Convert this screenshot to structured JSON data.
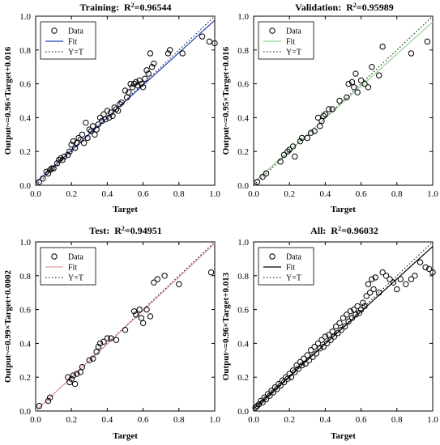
{
  "chart_data": [
    {
      "type": "scatter",
      "title_prefix": "Training:",
      "title_r2": "0.96544",
      "xlabel": "Target",
      "ylabel": "Output~=0.96×Target+0.016",
      "xlim": [
        0,
        1
      ],
      "ylim": [
        0,
        1
      ],
      "xticks": [
        "0.0",
        "0.2",
        "0.4",
        "0.6",
        "0.8",
        "1.0"
      ],
      "yticks": [
        "0.0",
        "0.2",
        "0.4",
        "0.6",
        "0.8",
        "1.0"
      ],
      "legend": [
        "Data",
        "Fit",
        "Y=T"
      ],
      "legend_position": "top-left",
      "fit": {
        "slope": 0.96,
        "intercept": 0.016,
        "color": "#1f3fbf"
      },
      "points": [
        [
          0.02,
          0.02
        ],
        [
          0.04,
          0.04
        ],
        [
          0.06,
          0.08
        ],
        [
          0.07,
          0.07
        ],
        [
          0.08,
          0.09
        ],
        [
          0.09,
          0.1
        ],
        [
          0.1,
          0.1
        ],
        [
          0.12,
          0.13
        ],
        [
          0.13,
          0.15
        ],
        [
          0.14,
          0.16
        ],
        [
          0.15,
          0.15
        ],
        [
          0.16,
          0.17
        ],
        [
          0.18,
          0.18
        ],
        [
          0.19,
          0.2
        ],
        [
          0.2,
          0.24
        ],
        [
          0.21,
          0.26
        ],
        [
          0.22,
          0.22
        ],
        [
          0.23,
          0.25
        ],
        [
          0.24,
          0.28
        ],
        [
          0.25,
          0.27
        ],
        [
          0.26,
          0.3
        ],
        [
          0.27,
          0.25
        ],
        [
          0.28,
          0.37
        ],
        [
          0.29,
          0.28
        ],
        [
          0.3,
          0.33
        ],
        [
          0.31,
          0.32
        ],
        [
          0.32,
          0.35
        ],
        [
          0.33,
          0.3
        ],
        [
          0.34,
          0.33
        ],
        [
          0.35,
          0.36
        ],
        [
          0.36,
          0.4
        ],
        [
          0.37,
          0.38
        ],
        [
          0.38,
          0.42
        ],
        [
          0.39,
          0.39
        ],
        [
          0.4,
          0.44
        ],
        [
          0.41,
          0.4
        ],
        [
          0.42,
          0.43
        ],
        [
          0.43,
          0.41
        ],
        [
          0.44,
          0.46
        ],
        [
          0.45,
          0.45
        ],
        [
          0.46,
          0.44
        ],
        [
          0.47,
          0.48
        ],
        [
          0.48,
          0.49
        ],
        [
          0.5,
          0.56
        ],
        [
          0.51,
          0.52
        ],
        [
          0.52,
          0.55
        ],
        [
          0.53,
          0.6
        ],
        [
          0.54,
          0.58
        ],
        [
          0.55,
          0.6
        ],
        [
          0.56,
          0.61
        ],
        [
          0.57,
          0.59
        ],
        [
          0.58,
          0.62
        ],
        [
          0.59,
          0.6
        ],
        [
          0.6,
          0.58
        ],
        [
          0.61,
          0.63
        ],
        [
          0.62,
          0.68
        ],
        [
          0.63,
          0.66
        ],
        [
          0.64,
          0.78
        ],
        [
          0.65,
          0.7
        ],
        [
          0.66,
          0.72
        ],
        [
          0.74,
          0.78
        ],
        [
          0.75,
          0.8
        ],
        [
          0.82,
          0.78
        ],
        [
          0.93,
          0.88
        ],
        [
          0.97,
          0.85
        ],
        [
          1.0,
          0.84
        ]
      ]
    },
    {
      "type": "scatter",
      "title_prefix": "Validation:",
      "title_r2": "0.95989",
      "xlabel": "Target",
      "ylabel": "Output~=0.95×Target+0.016",
      "xlim": [
        0,
        1
      ],
      "ylim": [
        0,
        1
      ],
      "xticks": [
        "0.0",
        "0.2",
        "0.4",
        "0.6",
        "0.8",
        "1.0"
      ],
      "yticks": [
        "0.0",
        "0.2",
        "0.4",
        "0.6",
        "0.8",
        "1.0"
      ],
      "legend": [
        "Data",
        "Fit",
        "Y=T"
      ],
      "legend_position": "top-left",
      "fit": {
        "slope": 0.95,
        "intercept": 0.016,
        "color": "#8fd48f"
      },
      "points": [
        [
          0.02,
          0.02
        ],
        [
          0.05,
          0.05
        ],
        [
          0.07,
          0.07
        ],
        [
          0.15,
          0.14
        ],
        [
          0.17,
          0.18
        ],
        [
          0.19,
          0.2
        ],
        [
          0.2,
          0.21
        ],
        [
          0.22,
          0.23
        ],
        [
          0.23,
          0.17
        ],
        [
          0.26,
          0.26
        ],
        [
          0.27,
          0.28
        ],
        [
          0.3,
          0.28
        ],
        [
          0.32,
          0.31
        ],
        [
          0.34,
          0.32
        ],
        [
          0.36,
          0.4
        ],
        [
          0.37,
          0.35
        ],
        [
          0.38,
          0.38
        ],
        [
          0.39,
          0.41
        ],
        [
          0.4,
          0.42
        ],
        [
          0.42,
          0.45
        ],
        [
          0.44,
          0.45
        ],
        [
          0.48,
          0.5
        ],
        [
          0.52,
          0.52
        ],
        [
          0.53,
          0.6
        ],
        [
          0.55,
          0.61
        ],
        [
          0.56,
          0.58
        ],
        [
          0.57,
          0.66
        ],
        [
          0.58,
          0.55
        ],
        [
          0.6,
          0.62
        ],
        [
          0.62,
          0.6
        ],
        [
          0.64,
          0.58
        ],
        [
          0.66,
          0.7
        ],
        [
          0.7,
          0.65
        ],
        [
          0.72,
          0.82
        ],
        [
          0.88,
          0.78
        ],
        [
          0.97,
          0.85
        ]
      ]
    },
    {
      "type": "scatter",
      "title_prefix": "Test:",
      "title_r2": "0.94951",
      "xlabel": "Target",
      "ylabel": "Output~=0.99×Target+0.0002",
      "xlim": [
        0,
        1
      ],
      "ylim": [
        0,
        1
      ],
      "xticks": [
        "0.0",
        "0.2",
        "0.4",
        "0.6",
        "0.8",
        "1.0"
      ],
      "yticks": [
        "0.0",
        "0.2",
        "0.4",
        "0.6",
        "0.8",
        "1.0"
      ],
      "legend": [
        "Data",
        "Fit",
        "Y=T"
      ],
      "legend_position": "top-left",
      "fit": {
        "slope": 0.99,
        "intercept": 0.0002,
        "color": "#e59a9a"
      },
      "points": [
        [
          0.02,
          0.03
        ],
        [
          0.07,
          0.06
        ],
        [
          0.08,
          0.08
        ],
        [
          0.18,
          0.2
        ],
        [
          0.19,
          0.17
        ],
        [
          0.2,
          0.19
        ],
        [
          0.21,
          0.21
        ],
        [
          0.22,
          0.16
        ],
        [
          0.23,
          0.22
        ],
        [
          0.25,
          0.23
        ],
        [
          0.26,
          0.26
        ],
        [
          0.3,
          0.3
        ],
        [
          0.32,
          0.31
        ],
        [
          0.34,
          0.35
        ],
        [
          0.35,
          0.38
        ],
        [
          0.36,
          0.4
        ],
        [
          0.38,
          0.41
        ],
        [
          0.4,
          0.43
        ],
        [
          0.42,
          0.43
        ],
        [
          0.45,
          0.42
        ],
        [
          0.5,
          0.48
        ],
        [
          0.55,
          0.59
        ],
        [
          0.56,
          0.57
        ],
        [
          0.58,
          0.6
        ],
        [
          0.59,
          0.55
        ],
        [
          0.6,
          0.52
        ],
        [
          0.62,
          0.6
        ],
        [
          0.64,
          0.56
        ],
        [
          0.66,
          0.76
        ],
        [
          0.68,
          0.78
        ],
        [
          0.72,
          0.8
        ],
        [
          0.8,
          0.75
        ],
        [
          0.98,
          0.82
        ]
      ]
    },
    {
      "type": "scatter",
      "title_prefix": "All:",
      "title_r2": "0.96032",
      "xlabel": "Target",
      "ylabel": "Output~=0.96×Target+0.013",
      "xlim": [
        0,
        1
      ],
      "ylim": [
        0,
        1
      ],
      "xticks": [
        "0.0",
        "0.2",
        "0.4",
        "0.6",
        "0.8",
        "1.0"
      ],
      "yticks": [
        "0.0",
        "0.2",
        "0.4",
        "0.6",
        "0.8",
        "1.0"
      ],
      "legend": [
        "Data",
        "Fit",
        "Y=T"
      ],
      "legend_position": "top-left",
      "fit": {
        "slope": 0.96,
        "intercept": 0.013,
        "color": "#000000"
      },
      "points": [
        [
          0.01,
          0.02
        ],
        [
          0.02,
          0.03
        ],
        [
          0.03,
          0.04
        ],
        [
          0.04,
          0.06
        ],
        [
          0.05,
          0.05
        ],
        [
          0.06,
          0.08
        ],
        [
          0.07,
          0.07
        ],
        [
          0.08,
          0.1
        ],
        [
          0.09,
          0.09
        ],
        [
          0.1,
          0.12
        ],
        [
          0.11,
          0.11
        ],
        [
          0.12,
          0.14
        ],
        [
          0.13,
          0.13
        ],
        [
          0.14,
          0.16
        ],
        [
          0.15,
          0.15
        ],
        [
          0.16,
          0.18
        ],
        [
          0.17,
          0.17
        ],
        [
          0.18,
          0.2
        ],
        [
          0.19,
          0.19
        ],
        [
          0.2,
          0.22
        ],
        [
          0.21,
          0.2
        ],
        [
          0.22,
          0.24
        ],
        [
          0.23,
          0.23
        ],
        [
          0.24,
          0.27
        ],
        [
          0.25,
          0.25
        ],
        [
          0.26,
          0.29
        ],
        [
          0.27,
          0.27
        ],
        [
          0.28,
          0.31
        ],
        [
          0.29,
          0.28
        ],
        [
          0.3,
          0.33
        ],
        [
          0.31,
          0.3
        ],
        [
          0.32,
          0.36
        ],
        [
          0.33,
          0.32
        ],
        [
          0.34,
          0.38
        ],
        [
          0.35,
          0.34
        ],
        [
          0.36,
          0.4
        ],
        [
          0.37,
          0.37
        ],
        [
          0.38,
          0.42
        ],
        [
          0.39,
          0.38
        ],
        [
          0.4,
          0.44
        ],
        [
          0.41,
          0.4
        ],
        [
          0.42,
          0.45
        ],
        [
          0.43,
          0.42
        ],
        [
          0.44,
          0.47
        ],
        [
          0.45,
          0.44
        ],
        [
          0.46,
          0.5
        ],
        [
          0.47,
          0.46
        ],
        [
          0.48,
          0.52
        ],
        [
          0.49,
          0.48
        ],
        [
          0.5,
          0.55
        ],
        [
          0.51,
          0.5
        ],
        [
          0.52,
          0.57
        ],
        [
          0.53,
          0.53
        ],
        [
          0.54,
          0.59
        ],
        [
          0.55,
          0.55
        ],
        [
          0.56,
          0.6
        ],
        [
          0.57,
          0.57
        ],
        [
          0.58,
          0.62
        ],
        [
          0.59,
          0.58
        ],
        [
          0.6,
          0.6
        ],
        [
          0.61,
          0.64
        ],
        [
          0.62,
          0.62
        ],
        [
          0.63,
          0.68
        ],
        [
          0.64,
          0.75
        ],
        [
          0.65,
          0.7
        ],
        [
          0.66,
          0.78
        ],
        [
          0.67,
          0.72
        ],
        [
          0.68,
          0.79
        ],
        [
          0.7,
          0.7
        ],
        [
          0.72,
          0.82
        ],
        [
          0.74,
          0.8
        ],
        [
          0.76,
          0.78
        ],
        [
          0.78,
          0.76
        ],
        [
          0.8,
          0.72
        ],
        [
          0.82,
          0.78
        ],
        [
          0.85,
          0.75
        ],
        [
          0.88,
          0.78
        ],
        [
          0.9,
          0.8
        ],
        [
          0.93,
          0.88
        ],
        [
          0.96,
          0.85
        ],
        [
          0.98,
          0.84
        ],
        [
          1.0,
          0.82
        ]
      ]
    }
  ]
}
